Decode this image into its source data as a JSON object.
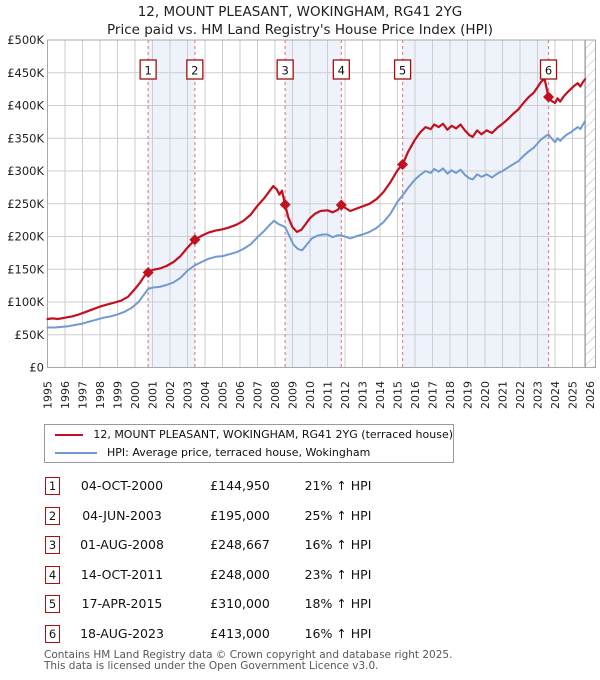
{
  "title": {
    "line1": "12, MOUNT PLEASANT, WOKINGHAM, RG41 2YG",
    "line2": "Price paid vs. HM Land Registry's House Price Index (HPI)"
  },
  "legend": [
    {
      "label": "12, MOUNT PLEASANT, WOKINGHAM, RG41 2YG (terraced house)",
      "color": "#c2101f"
    },
    {
      "label": "HPI: Average price, terraced house, Wokingham",
      "color": "#6f9bd1"
    }
  ],
  "sales": [
    {
      "num": "1",
      "date": "04-OCT-2000",
      "price": "£144,950",
      "hpi_diff": "21% ↑ HPI",
      "year": 2000.75,
      "value_k": 144.95
    },
    {
      "num": "2",
      "date": "04-JUN-2003",
      "price": "£195,000",
      "hpi_diff": "25% ↑ HPI",
      "year": 2003.42,
      "value_k": 195
    },
    {
      "num": "3",
      "date": "01-AUG-2008",
      "price": "£248,667",
      "hpi_diff": "16% ↑ HPI",
      "year": 2008.58,
      "value_k": 248.667
    },
    {
      "num": "4",
      "date": "14-OCT-2011",
      "price": "£248,000",
      "hpi_diff": "23% ↑ HPI",
      "year": 2011.79,
      "value_k": 248
    },
    {
      "num": "5",
      "date": "17-APR-2015",
      "price": "£310,000",
      "hpi_diff": "18% ↑ HPI",
      "year": 2015.29,
      "value_k": 310
    },
    {
      "num": "6",
      "date": "18-AUG-2023",
      "price": "£413,000",
      "hpi_diff": "16% ↑ HPI",
      "year": 2023.63,
      "value_k": 413
    }
  ],
  "chart_data": {
    "type": "line",
    "title": "12, MOUNT PLEASANT, WOKINGHAM, RG41 2YG — Price paid vs. HPI",
    "x_range": [
      1995,
      2026
    ],
    "ylim_k": [
      0,
      500
    ],
    "y_unit": "GBP (thousands)",
    "grid": true,
    "legend_position": "below",
    "x_ticks": [
      1995,
      1996,
      1997,
      1998,
      1999,
      2000,
      2001,
      2002,
      2003,
      2004,
      2005,
      2006,
      2007,
      2008,
      2009,
      2010,
      2011,
      2012,
      2013,
      2014,
      2015,
      2016,
      2017,
      2018,
      2019,
      2020,
      2021,
      2022,
      2023,
      2024,
      2025,
      2026
    ],
    "y_ticks": [
      {
        "v": 0,
        "label": "£0"
      },
      {
        "v": 50,
        "label": "£50K"
      },
      {
        "v": 100,
        "label": "£100K"
      },
      {
        "v": 150,
        "label": "£150K"
      },
      {
        "v": 200,
        "label": "£200K"
      },
      {
        "v": 250,
        "label": "£250K"
      },
      {
        "v": 300,
        "label": "£300K"
      },
      {
        "v": 350,
        "label": "£350K"
      },
      {
        "v": 400,
        "label": "£400K"
      },
      {
        "v": 450,
        "label": "£450K"
      },
      {
        "v": 500,
        "label": "£500K"
      }
    ],
    "ownership_bands": [
      [
        2000.75,
        2003.42
      ],
      [
        2008.58,
        2011.79
      ],
      [
        2015.29,
        2023.63
      ]
    ],
    "future_hatch_start_year": 2025.72,
    "colors": {
      "price_line": "#c2101f",
      "hpi_line": "#6f9bd1",
      "sale_dash": "#ef8080",
      "marker_box_border": "#a40e0e",
      "band_fill": "#eef2fa",
      "grid": "#cdcdcd",
      "plot_border": "#a8a8a8",
      "hatch": "#c3c7ce"
    },
    "series": [
      {
        "name": "12, MOUNT PLEASANT, WOKINGHAM, RG41 2YG (terraced house)",
        "color": "#c2101f",
        "width": 2.2,
        "points": [
          [
            1995.0,
            74
          ],
          [
            1995.3,
            75
          ],
          [
            1995.6,
            74
          ],
          [
            1996.0,
            76
          ],
          [
            1996.4,
            78
          ],
          [
            1996.8,
            81
          ],
          [
            1997.2,
            85
          ],
          [
            1997.6,
            89
          ],
          [
            1998.0,
            93
          ],
          [
            1998.4,
            96
          ],
          [
            1998.8,
            99
          ],
          [
            1999.2,
            102
          ],
          [
            1999.6,
            108
          ],
          [
            2000.0,
            120
          ],
          [
            2000.3,
            130
          ],
          [
            2000.55,
            140
          ],
          [
            2000.75,
            144.95
          ],
          [
            2001.0,
            149
          ],
          [
            2001.4,
            151
          ],
          [
            2001.8,
            155
          ],
          [
            2002.2,
            161
          ],
          [
            2002.6,
            170
          ],
          [
            2003.0,
            183
          ],
          [
            2003.42,
            195
          ],
          [
            2003.8,
            201
          ],
          [
            2004.2,
            206
          ],
          [
            2004.6,
            209
          ],
          [
            2005.0,
            211
          ],
          [
            2005.4,
            214
          ],
          [
            2005.8,
            218
          ],
          [
            2006.2,
            224
          ],
          [
            2006.6,
            233
          ],
          [
            2007.0,
            247
          ],
          [
            2007.4,
            259
          ],
          [
            2007.7,
            270
          ],
          [
            2007.9,
            277
          ],
          [
            2008.1,
            272
          ],
          [
            2008.25,
            264
          ],
          [
            2008.4,
            270
          ],
          [
            2008.58,
            248.667
          ],
          [
            2008.75,
            230
          ],
          [
            2009.0,
            214
          ],
          [
            2009.25,
            207
          ],
          [
            2009.5,
            210
          ],
          [
            2009.75,
            219
          ],
          [
            2010.0,
            228
          ],
          [
            2010.3,
            235
          ],
          [
            2010.6,
            239
          ],
          [
            2011.0,
            240
          ],
          [
            2011.3,
            237
          ],
          [
            2011.6,
            241
          ],
          [
            2011.79,
            248
          ],
          [
            2012.0,
            244
          ],
          [
            2012.3,
            239
          ],
          [
            2012.6,
            242
          ],
          [
            2013.0,
            246
          ],
          [
            2013.4,
            250
          ],
          [
            2013.8,
            257
          ],
          [
            2014.2,
            268
          ],
          [
            2014.6,
            283
          ],
          [
            2015.0,
            301
          ],
          [
            2015.29,
            310
          ],
          [
            2015.6,
            329
          ],
          [
            2016.0,
            348
          ],
          [
            2016.3,
            359
          ],
          [
            2016.6,
            367
          ],
          [
            2016.9,
            364
          ],
          [
            2017.1,
            371
          ],
          [
            2017.35,
            367
          ],
          [
            2017.6,
            372
          ],
          [
            2017.85,
            363
          ],
          [
            2018.1,
            369
          ],
          [
            2018.35,
            365
          ],
          [
            2018.6,
            371
          ],
          [
            2018.85,
            362
          ],
          [
            2019.1,
            355
          ],
          [
            2019.3,
            352
          ],
          [
            2019.55,
            362
          ],
          [
            2019.8,
            356
          ],
          [
            2020.1,
            362
          ],
          [
            2020.4,
            358
          ],
          [
            2020.7,
            366
          ],
          [
            2021.0,
            372
          ],
          [
            2021.3,
            379
          ],
          [
            2021.6,
            387
          ],
          [
            2021.9,
            394
          ],
          [
            2022.2,
            404
          ],
          [
            2022.5,
            413
          ],
          [
            2022.8,
            420
          ],
          [
            2023.0,
            428
          ],
          [
            2023.2,
            436
          ],
          [
            2023.4,
            441
          ],
          [
            2023.63,
            413
          ],
          [
            2023.8,
            407
          ],
          [
            2024.0,
            404
          ],
          [
            2024.15,
            411
          ],
          [
            2024.3,
            406
          ],
          [
            2024.5,
            414
          ],
          [
            2024.7,
            420
          ],
          [
            2024.9,
            425
          ],
          [
            2025.1,
            430
          ],
          [
            2025.3,
            434
          ],
          [
            2025.45,
            429
          ],
          [
            2025.6,
            436
          ],
          [
            2025.72,
            440
          ]
        ]
      },
      {
        "name": "HPI: Average price, terraced house, Wokingham",
        "color": "#6f9bd1",
        "width": 2,
        "points": [
          [
            1995.0,
            61
          ],
          [
            1995.4,
            61
          ],
          [
            1995.8,
            62
          ],
          [
            1996.2,
            63
          ],
          [
            1996.6,
            65
          ],
          [
            1997.0,
            67
          ],
          [
            1997.4,
            70
          ],
          [
            1997.8,
            73
          ],
          [
            1998.2,
            76
          ],
          [
            1998.6,
            78
          ],
          [
            1999.0,
            81
          ],
          [
            1999.4,
            85
          ],
          [
            1999.8,
            91
          ],
          [
            2000.2,
            100
          ],
          [
            2000.5,
            111
          ],
          [
            2000.75,
            119.8
          ],
          [
            2001.0,
            122
          ],
          [
            2001.4,
            123
          ],
          [
            2001.8,
            126
          ],
          [
            2002.2,
            130
          ],
          [
            2002.6,
            137
          ],
          [
            2003.0,
            148
          ],
          [
            2003.42,
            156
          ],
          [
            2003.8,
            161
          ],
          [
            2004.2,
            166
          ],
          [
            2004.6,
            169
          ],
          [
            2005.0,
            170
          ],
          [
            2005.4,
            173
          ],
          [
            2005.8,
            176
          ],
          [
            2006.2,
            181
          ],
          [
            2006.6,
            188
          ],
          [
            2007.0,
            199
          ],
          [
            2007.4,
            209
          ],
          [
            2007.7,
            218
          ],
          [
            2007.95,
            224
          ],
          [
            2008.2,
            219
          ],
          [
            2008.45,
            216
          ],
          [
            2008.58,
            214.4
          ],
          [
            2008.8,
            202
          ],
          [
            2009.05,
            188
          ],
          [
            2009.3,
            181
          ],
          [
            2009.55,
            179
          ],
          [
            2009.8,
            187
          ],
          [
            2010.1,
            197
          ],
          [
            2010.4,
            201
          ],
          [
            2010.7,
            203
          ],
          [
            2011.0,
            203
          ],
          [
            2011.3,
            199
          ],
          [
            2011.6,
            202
          ],
          [
            2011.79,
            201.6
          ],
          [
            2012.0,
            200
          ],
          [
            2012.3,
            197
          ],
          [
            2012.6,
            200
          ],
          [
            2013.0,
            203
          ],
          [
            2013.4,
            207
          ],
          [
            2013.8,
            213
          ],
          [
            2014.2,
            222
          ],
          [
            2014.6,
            235
          ],
          [
            2015.0,
            253
          ],
          [
            2015.29,
            262.7
          ],
          [
            2015.6,
            274
          ],
          [
            2016.0,
            287
          ],
          [
            2016.3,
            294
          ],
          [
            2016.6,
            300
          ],
          [
            2016.9,
            297
          ],
          [
            2017.1,
            303
          ],
          [
            2017.35,
            299
          ],
          [
            2017.6,
            304
          ],
          [
            2017.85,
            296
          ],
          [
            2018.1,
            301
          ],
          [
            2018.35,
            297
          ],
          [
            2018.6,
            302
          ],
          [
            2018.85,
            294
          ],
          [
            2019.1,
            289
          ],
          [
            2019.3,
            287
          ],
          [
            2019.55,
            295
          ],
          [
            2019.8,
            291
          ],
          [
            2020.1,
            295
          ],
          [
            2020.4,
            290
          ],
          [
            2020.7,
            296
          ],
          [
            2021.0,
            300
          ],
          [
            2021.3,
            305
          ],
          [
            2021.6,
            310
          ],
          [
            2021.9,
            315
          ],
          [
            2022.2,
            323
          ],
          [
            2022.5,
            330
          ],
          [
            2022.8,
            336
          ],
          [
            2023.0,
            342
          ],
          [
            2023.2,
            348
          ],
          [
            2023.4,
            352
          ],
          [
            2023.63,
            356
          ],
          [
            2023.8,
            350
          ],
          [
            2024.0,
            344
          ],
          [
            2024.15,
            350
          ],
          [
            2024.3,
            346
          ],
          [
            2024.5,
            352
          ],
          [
            2024.7,
            356
          ],
          [
            2024.9,
            359
          ],
          [
            2025.1,
            363
          ],
          [
            2025.3,
            367
          ],
          [
            2025.45,
            364
          ],
          [
            2025.6,
            371
          ],
          [
            2025.72,
            376
          ]
        ]
      }
    ]
  },
  "footer": {
    "line1": "Contains HM Land Registry data © Crown copyright and database right 2025.",
    "line2": "This data is licensed under the Open Government Licence v3.0."
  }
}
